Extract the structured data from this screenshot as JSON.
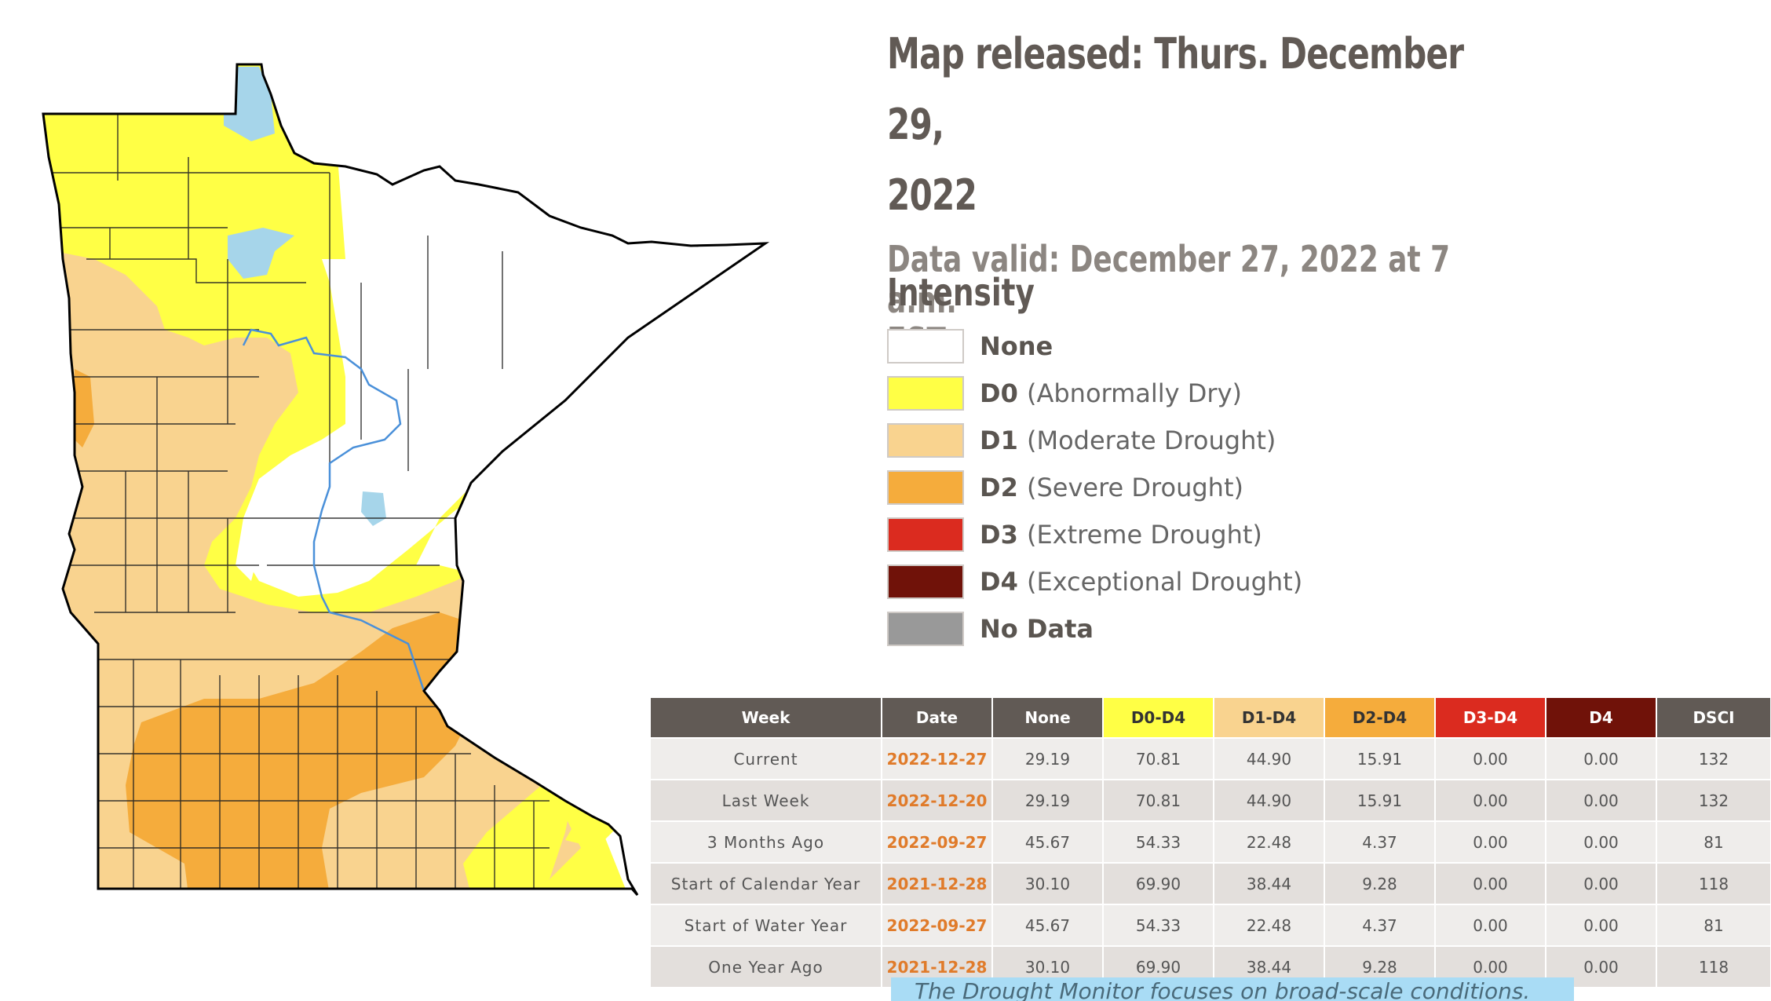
{
  "header": {
    "released_line1": "Map released: Thurs. December 29,",
    "released_line2": "2022",
    "valid_line1": "Data valid: December 27, 2022 at 7 a.m.",
    "valid_line2": "EST"
  },
  "legend": {
    "title": "Intensity",
    "items": [
      {
        "code": "",
        "label": "None",
        "color": "#ffffff"
      },
      {
        "code": "D0",
        "label": "(Abnormally Dry)",
        "color": "#ffff45"
      },
      {
        "code": "D1",
        "label": "(Moderate Drought)",
        "color": "#f9d38f"
      },
      {
        "code": "D2",
        "label": "(Severe Drought)",
        "color": "#f5ac3c"
      },
      {
        "code": "D3",
        "label": "(Extreme Drought)",
        "color": "#db2b1f"
      },
      {
        "code": "D4",
        "label": "(Exceptional Drought)",
        "color": "#701209"
      },
      {
        "code": "",
        "label": "No Data",
        "color": "#999999"
      }
    ]
  },
  "table": {
    "headers": [
      "Week",
      "Date",
      "None",
      "D0-D4",
      "D1-D4",
      "D2-D4",
      "D3-D4",
      "D4",
      "DSCI"
    ],
    "header_colors": [
      "#615a55",
      "#615a55",
      "#615a55",
      "#ffff45",
      "#f9d38f",
      "#f5ac3c",
      "#db2b1f",
      "#701209",
      "#615a55"
    ],
    "rows": [
      [
        "Current",
        "2022-12-27",
        "29.19",
        "70.81",
        "44.90",
        "15.91",
        "0.00",
        "0.00",
        "132"
      ],
      [
        "Last Week",
        "2022-12-20",
        "29.19",
        "70.81",
        "44.90",
        "15.91",
        "0.00",
        "0.00",
        "132"
      ],
      [
        "3 Months Ago",
        "2022-09-27",
        "45.67",
        "54.33",
        "22.48",
        "4.37",
        "0.00",
        "0.00",
        "81"
      ],
      [
        "Start of Calendar Year",
        "2021-12-28",
        "30.10",
        "69.90",
        "38.44",
        "9.28",
        "0.00",
        "0.00",
        "118"
      ],
      [
        "Start of Water Year",
        "2022-09-27",
        "45.67",
        "54.33",
        "22.48",
        "4.37",
        "0.00",
        "0.00",
        "81"
      ],
      [
        "One Year Ago",
        "2021-12-28",
        "30.10",
        "69.90",
        "38.44",
        "9.28",
        "0.00",
        "0.00",
        "118"
      ]
    ]
  },
  "note": "The Drought Monitor focuses on broad-scale conditions."
}
